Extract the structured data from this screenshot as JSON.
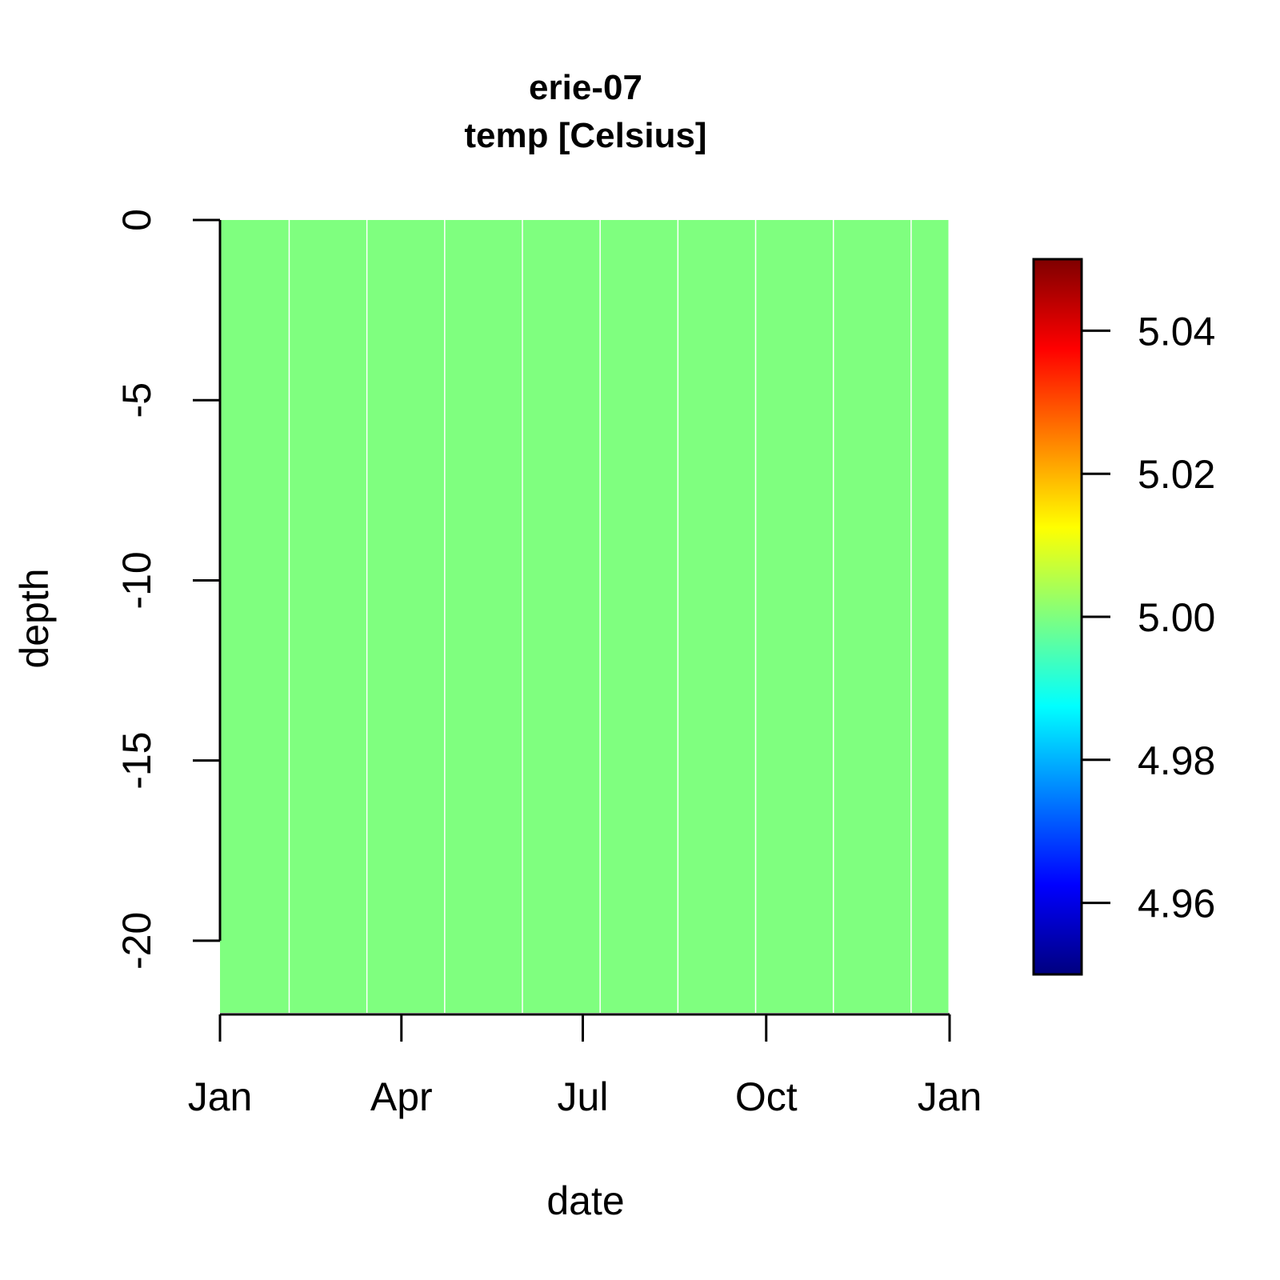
{
  "chart_data": {
    "type": "heatmap",
    "title": "erie-07",
    "subtitle": "temp [Celsius]",
    "xlabel": "date",
    "ylabel": "depth",
    "x_ticks": [
      "Jan",
      "Apr",
      "Jul",
      "Oct",
      "Jan"
    ],
    "x_tick_dates": [
      "2000-01-01",
      "2000-04-01",
      "2000-07-01",
      "2000-10-01",
      "2001-01-01"
    ],
    "xlim": [
      "2000-01-01",
      "2001-01-01"
    ],
    "y_ticks": [
      "0",
      "-5",
      "-10",
      "-15",
      "-20"
    ],
    "y_tick_values": [
      0,
      -5,
      -10,
      -15,
      -20
    ],
    "ylim": [
      -22,
      0
    ],
    "columns": [
      {
        "start": "2000-01-01",
        "end": "2000-02-05",
        "value": 5.0
      },
      {
        "start": "2000-02-05",
        "end": "2000-03-15",
        "value": 5.0
      },
      {
        "start": "2000-03-15",
        "end": "2000-04-23",
        "value": 5.0
      },
      {
        "start": "2000-04-23",
        "end": "2000-06-01",
        "value": 5.0
      },
      {
        "start": "2000-06-01",
        "end": "2000-07-10",
        "value": 5.0
      },
      {
        "start": "2000-07-10",
        "end": "2000-08-18",
        "value": 5.0
      },
      {
        "start": "2000-08-18",
        "end": "2000-09-26",
        "value": 5.0
      },
      {
        "start": "2000-09-26",
        "end": "2000-11-04",
        "value": 5.0
      },
      {
        "start": "2000-11-04",
        "end": "2000-12-13",
        "value": 5.0
      },
      {
        "start": "2000-12-13",
        "end": "2001-01-01",
        "value": 5.0
      }
    ],
    "color_scale": {
      "min": 4.95,
      "max": 5.05,
      "ticks": [
        "5.04",
        "5.02",
        "5.00",
        "4.98",
        "4.96"
      ],
      "tick_values": [
        5.04,
        5.02,
        5.0,
        4.98,
        4.96
      ],
      "colors": [
        "#00007F",
        "#0000FF",
        "#007FFF",
        "#00FFFF",
        "#7FFF7F",
        "#FFFF00",
        "#FF7F00",
        "#FF0000",
        "#7F0000"
      ]
    },
    "fill_color": "#80FF80",
    "grid": false
  }
}
